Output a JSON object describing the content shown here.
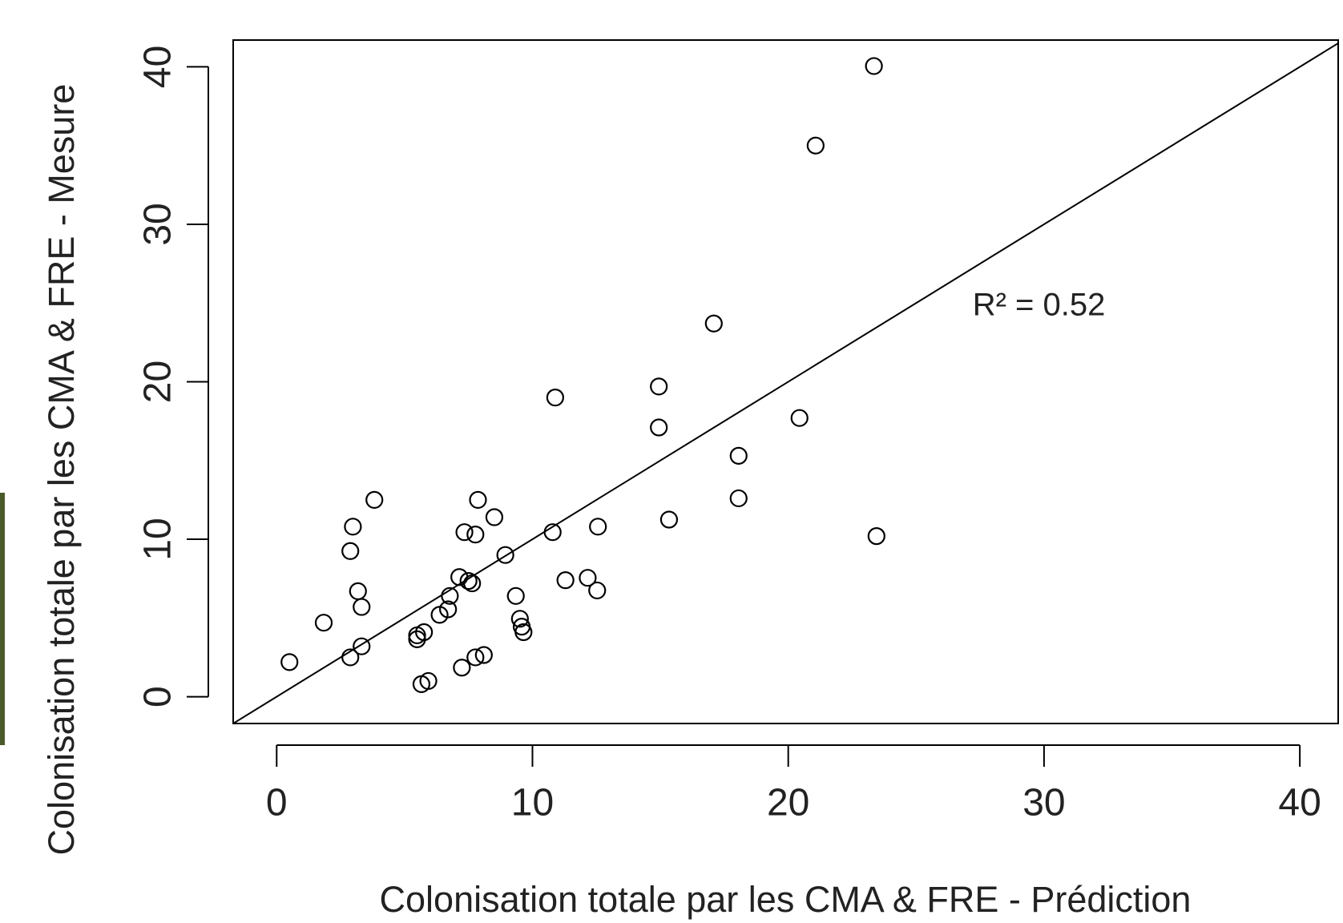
{
  "chart_data": {
    "type": "scatter",
    "xlabel": "Colonisation totale par les CMA & FRE - Prédiction",
    "ylabel": "Colonisation totale par les CMA & FRE - Mesure",
    "annotation": "R² = 0.52",
    "x": [
      0.5,
      1.84,
      2.88,
      2.98,
      3.18,
      3.32,
      2.88,
      3.32,
      3.82,
      5.49,
      5.49,
      5.76,
      5.66,
      5.93,
      6.37,
      6.7,
      6.77,
      7.14,
      7.5,
      7.64,
      7.34,
      7.77,
      7.87,
      8.51,
      7.24,
      7.77,
      8.1,
      8.94,
      9.35,
      9.51,
      9.58,
      9.65,
      10.79,
      10.89,
      11.29,
      12.16,
      12.53,
      12.56,
      14.94,
      14.94,
      15.34,
      17.09,
      18.06,
      18.06,
      20.44,
      21.07,
      23.35,
      23.45
    ],
    "y": [
      2.2,
      4.7,
      9.25,
      10.8,
      6.7,
      5.7,
      2.5,
      3.2,
      12.5,
      3.65,
      3.9,
      4.1,
      0.8,
      1.0,
      5.2,
      5.55,
      6.4,
      7.6,
      7.35,
      7.2,
      10.45,
      10.3,
      12.5,
      11.4,
      1.85,
      2.5,
      2.65,
      9.0,
      6.4,
      4.95,
      4.45,
      4.1,
      10.45,
      19.0,
      7.4,
      7.55,
      6.75,
      10.8,
      19.7,
      17.1,
      11.25,
      23.7,
      15.3,
      12.6,
      17.7,
      35.0,
      40.05,
      10.2
    ],
    "color": "#000000",
    "reference_line": {
      "slope": 1,
      "intercept": 0
    },
    "xlim": [
      -1.7,
      41.5
    ],
    "ylim": [
      -1.7,
      41.7
    ],
    "xticks": [
      0,
      10,
      20,
      30,
      40
    ],
    "yticks": [
      0,
      10,
      20,
      30,
      40
    ]
  }
}
